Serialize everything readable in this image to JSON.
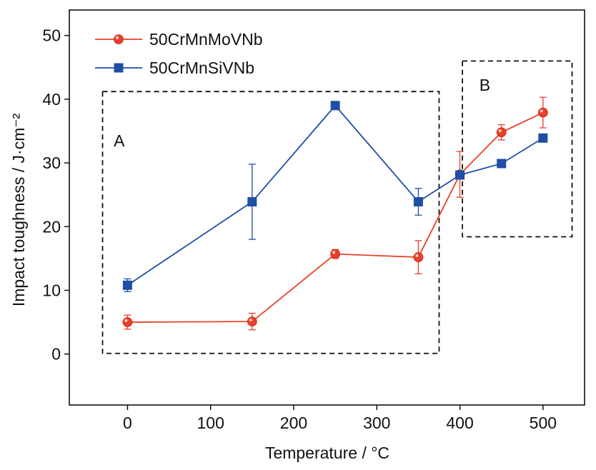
{
  "chart_data": {
    "type": "line",
    "xlabel": "Temperature / °C",
    "ylabel": "Impact toughness / J·cm⁻²",
    "xlim": [
      -70,
      550
    ],
    "ylim": [
      -8,
      54
    ],
    "xticks": [
      0,
      100,
      200,
      300,
      400,
      500
    ],
    "yticks": [
      0,
      10,
      20,
      30,
      40,
      50
    ],
    "xtick_labels": [
      "0",
      "100",
      "200",
      "300",
      "400",
      "500"
    ],
    "ytick_labels": [
      "0",
      "10",
      "20",
      "30",
      "40",
      "50"
    ],
    "grid": false,
    "legend_position": "top-left",
    "series": [
      {
        "name": "50CrMnMoVNb",
        "color": "#e8402a",
        "marker": "circle",
        "x": [
          0,
          150,
          250,
          350,
          400,
          450,
          500
        ],
        "y": [
          5.0,
          5.1,
          15.7,
          15.2,
          28.2,
          34.8,
          37.9
        ],
        "err": [
          1.1,
          1.3,
          0.7,
          2.6,
          3.6,
          1.2,
          2.4
        ]
      },
      {
        "name": "50CrMnSiVNb",
        "color": "#1f4ea5",
        "marker": "square",
        "x": [
          0,
          150,
          250,
          350,
          400,
          450,
          500
        ],
        "y": [
          10.8,
          23.9,
          39.0,
          23.9,
          28.1,
          29.9,
          33.9
        ],
        "err": [
          1.0,
          5.9,
          0.6,
          2.1,
          0,
          0,
          0
        ]
      }
    ],
    "annotations": [
      {
        "text": "A",
        "x": -10,
        "y": 33.5
      },
      {
        "text": "B",
        "x": 430,
        "y": 42.2
      }
    ],
    "regions": [
      {
        "label": "A",
        "x": [
          -30,
          375
        ],
        "y": [
          0.1,
          41.2
        ]
      },
      {
        "label": "B",
        "x": 403,
        "y_range": [
          18.4,
          46.0
        ],
        "x_range": [
          403,
          535
        ]
      }
    ]
  }
}
